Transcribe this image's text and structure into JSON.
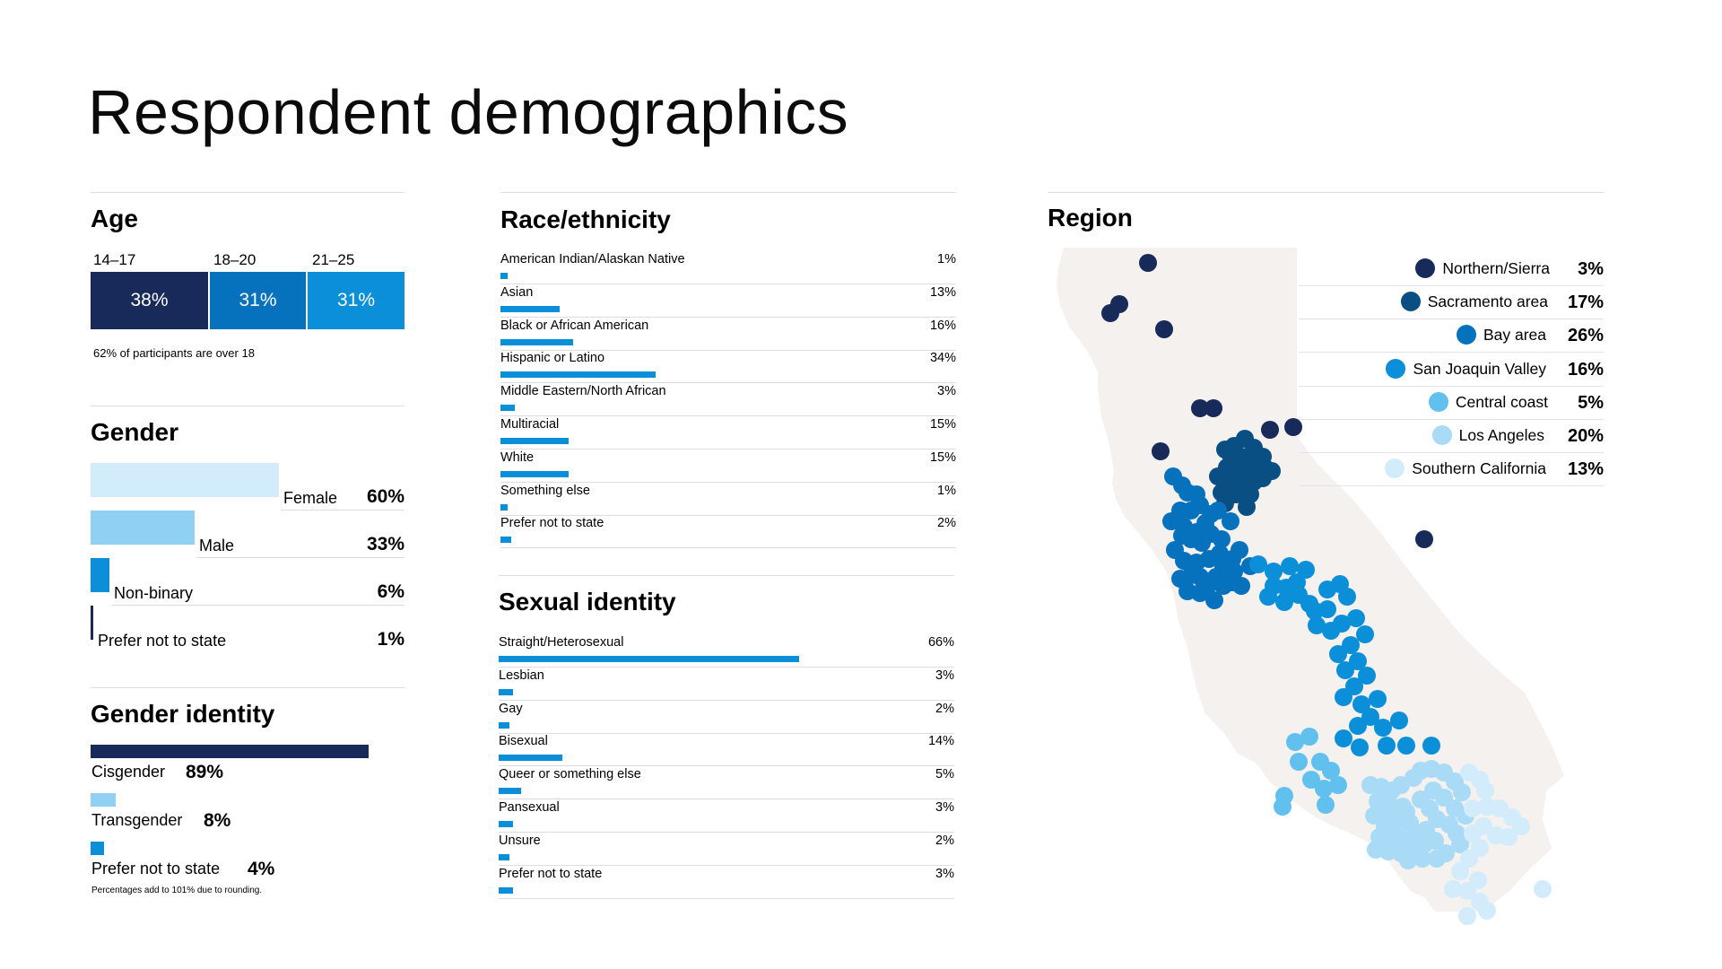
{
  "page": {
    "title": "Respondent demographics"
  },
  "colors": {
    "navy": "#172a59",
    "dark_blue": "#0a4f83",
    "mid_blue": "#0672bd",
    "blue": "#0b8fd8",
    "sky": "#62c0ef",
    "light": "#a9dbf6",
    "pale": "#d3ecfb",
    "map_land": "#f4f1ee"
  },
  "chart_data": [
    {
      "id": "age",
      "type": "bar",
      "subtype": "stacked-100",
      "title": "Age",
      "categories": [
        "14–17",
        "18–20",
        "21–25"
      ],
      "values": [
        38,
        31,
        31
      ],
      "value_labels": [
        "38%",
        "31%",
        "31%"
      ],
      "colors": [
        "#172a59",
        "#0672bd",
        "#0b8fd8"
      ],
      "note": "62% of participants are over 18"
    },
    {
      "id": "gender",
      "type": "bar",
      "title": "Gender",
      "categories": [
        "Female",
        "Male",
        "Non-binary",
        "Prefer not to state"
      ],
      "values": [
        60,
        33,
        6,
        1
      ],
      "value_labels": [
        "60%",
        "33%",
        "6%",
        "1%"
      ],
      "colors": [
        "#d3ecfb",
        "#8fd0f3",
        "#0b8fd8",
        "#172a59"
      ]
    },
    {
      "id": "gender_identity",
      "type": "bar",
      "title": "Gender identity",
      "categories": [
        "Cisgender",
        "Transgender",
        "Prefer not to state"
      ],
      "values": [
        89,
        8,
        4
      ],
      "value_labels": [
        "89%",
        "8%",
        "4%"
      ],
      "colors": [
        "#172a59",
        "#8fd0f3",
        "#0b8fd8"
      ],
      "note": "Percentages add to 101% due to rounding."
    },
    {
      "id": "race",
      "type": "bar",
      "title": "Race/ethnicity",
      "categories": [
        "American Indian/Alaskan Native",
        "Asian",
        "Black or African American",
        "Hispanic or Latino",
        "Middle Eastern/North African",
        "Multiracial",
        "White",
        "Something else",
        "Prefer not to state"
      ],
      "values": [
        1,
        13,
        16,
        34,
        3,
        15,
        15,
        1,
        2
      ],
      "value_labels": [
        "1%",
        "13%",
        "16%",
        "34%",
        "3%",
        "15%",
        "15%",
        "1%",
        "2%"
      ]
    },
    {
      "id": "sexual",
      "type": "bar",
      "title": "Sexual identity",
      "categories": [
        "Straight/Heterosexual",
        "Lesbian",
        "Gay",
        "Bisexual",
        "Queer or something else",
        "Pansexual",
        "Unsure",
        "Prefer not to state"
      ],
      "values": [
        66,
        3,
        2,
        14,
        5,
        3,
        2,
        3
      ],
      "value_labels": [
        "66%",
        "3%",
        "2%",
        "14%",
        "5%",
        "3%",
        "2%",
        "3%"
      ]
    },
    {
      "id": "region",
      "type": "scatter",
      "subtype": "dot-map",
      "title": "Region",
      "series": [
        {
          "name": "Northern/Sierra",
          "value": 3,
          "value_label": "3%",
          "color": "#172a59"
        },
        {
          "name": "Sacramento area",
          "value": 17,
          "value_label": "17%",
          "color": "#0a4f83"
        },
        {
          "name": "Bay area",
          "value": 26,
          "value_label": "26%",
          "color": "#0672bd"
        },
        {
          "name": "San Joaquin Valley",
          "value": 16,
          "value_label": "16%",
          "color": "#0b8fd8"
        },
        {
          "name": "Central coast",
          "value": 5,
          "value_label": "5%",
          "color": "#62c0ef"
        },
        {
          "name": "Los Angeles",
          "value": 20,
          "value_label": "20%",
          "color": "#a9dbf6"
        },
        {
          "name": "Southern California",
          "value": 13,
          "value_label": "13%",
          "color": "#d3ecfb"
        }
      ]
    }
  ]
}
